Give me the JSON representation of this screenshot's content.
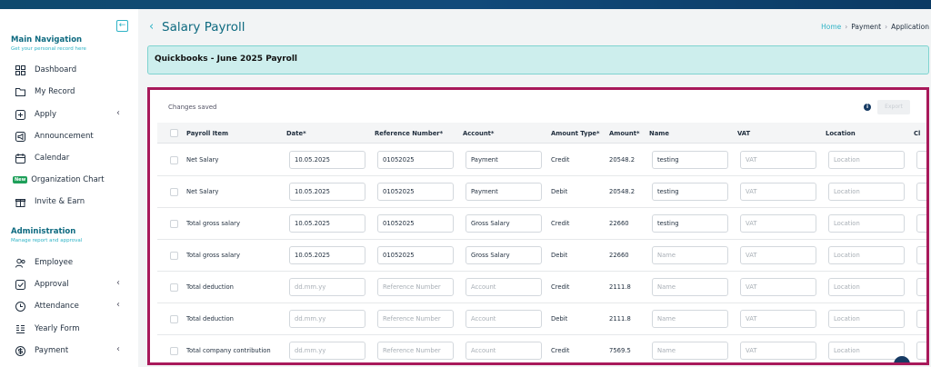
{
  "sidebar": {
    "collapse_icon": "arrow-left-icon",
    "main_nav": {
      "title": "Main Navigation",
      "subtitle": "Get your personal record here"
    },
    "items": [
      {
        "label": "Dashboard",
        "icon": "dashboard-icon"
      },
      {
        "label": "My Record",
        "icon": "folder-icon"
      },
      {
        "label": "Apply",
        "icon": "apply-icon",
        "has_chevron": true
      },
      {
        "label": "Announcement",
        "icon": "announcement-icon"
      },
      {
        "label": "Calendar",
        "icon": "calendar-icon"
      },
      {
        "label": "Organization Chart",
        "icon": "org-chart-icon",
        "badge": "New"
      },
      {
        "label": "Invite & Earn",
        "icon": "gift-icon"
      }
    ],
    "admin": {
      "title": "Administration",
      "subtitle": "Manage report and approval"
    },
    "admin_items": [
      {
        "label": "Employee",
        "icon": "employee-icon"
      },
      {
        "label": "Approval",
        "icon": "approval-icon",
        "has_chevron": true
      },
      {
        "label": "Attendance",
        "icon": "clock-icon",
        "has_chevron": true
      },
      {
        "label": "Yearly Form",
        "icon": "form-icon"
      },
      {
        "label": "Payment",
        "icon": "payment-icon",
        "has_chevron": true
      }
    ]
  },
  "header": {
    "title": "Salary Payroll",
    "breadcrumb": [
      "Home",
      "Payment",
      "Application"
    ]
  },
  "banner": {
    "text": "Quickbooks - June 2025 Payroll"
  },
  "grid": {
    "status": "Changes saved",
    "export_label": "Export",
    "columns": [
      "Payroll Item",
      "Date*",
      "Reference Number*",
      "Account*",
      "Amount Type*",
      "Amount*",
      "Name",
      "VAT",
      "Location",
      "Cl"
    ],
    "placeholders": {
      "date": "dd.mm.yy",
      "reference": "Reference Number",
      "account": "Account",
      "name": "Name",
      "vat": "VAT",
      "location": "Location"
    },
    "rows": [
      {
        "item": "Net Salary",
        "date": "10.05.2025",
        "reference": "01052025",
        "account": "Payment",
        "amount_type": "Credit",
        "amount": "20548.2",
        "name": "testing"
      },
      {
        "item": "Net Salary",
        "date": "10.05.2025",
        "reference": "01052025",
        "account": "Payment",
        "amount_type": "Debit",
        "amount": "20548.2",
        "name": "testing"
      },
      {
        "item": "Total gross salary",
        "date": "10.05.2025",
        "reference": "01052025",
        "account": "Gross Salary",
        "amount_type": "Credit",
        "amount": "22660",
        "name": "testing"
      },
      {
        "item": "Total gross salary",
        "date": "10.05.2025",
        "reference": "01052025",
        "account": "Gross Salary",
        "amount_type": "Debit",
        "amount": "22660",
        "name": ""
      },
      {
        "item": "Total deduction",
        "date": "",
        "reference": "",
        "account": "",
        "amount_type": "Credit",
        "amount": "2111.8",
        "name": ""
      },
      {
        "item": "Total deduction",
        "date": "",
        "reference": "",
        "account": "",
        "amount_type": "Debit",
        "amount": "2111.8",
        "name": ""
      },
      {
        "item": "Total company contribution",
        "date": "",
        "reference": "",
        "account": "",
        "amount_type": "Credit",
        "amount": "7569.5",
        "name": ""
      }
    ]
  },
  "colors": {
    "accent": "#2fb3c6",
    "title": "#0e6a80",
    "highlight_border": "#a8195a",
    "banner_bg": "#cdeeed"
  }
}
